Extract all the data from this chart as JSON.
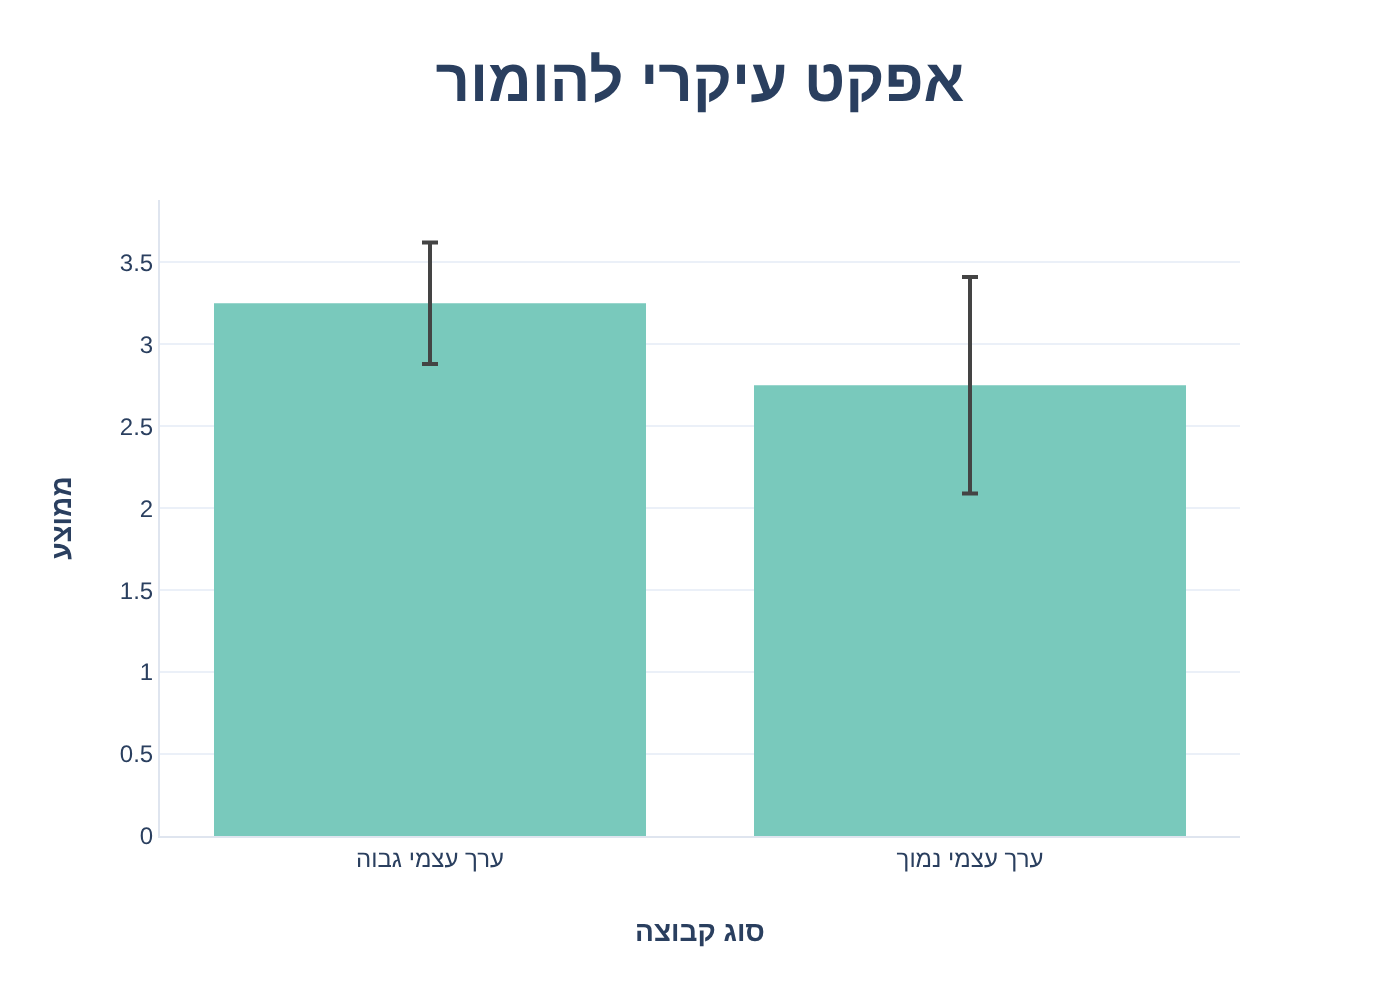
{
  "chart_data": {
    "type": "bar",
    "title": "אפקט עיקרי להומור",
    "xlabel": "סוג קבוצה",
    "ylabel": "ממוצע",
    "categories": [
      "ערך עצמי גבוה",
      "ערך עצמי נמוך"
    ],
    "values": [
      3.25,
      2.75
    ],
    "errors": [
      0.37,
      0.66
    ],
    "color": "#79c9bc",
    "ylim": [
      0,
      3.88
    ],
    "yticks": [
      0,
      0.5,
      1,
      1.5,
      2,
      2.5,
      3,
      3.5
    ],
    "grid": "y"
  }
}
